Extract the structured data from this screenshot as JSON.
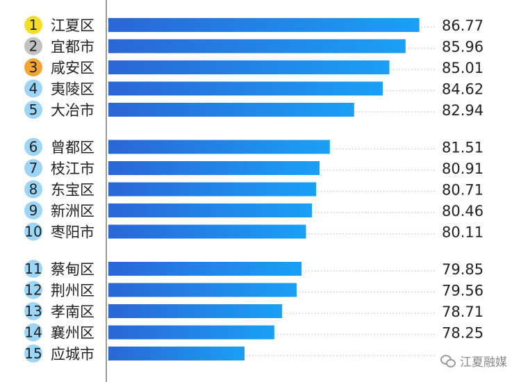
{
  "chart_data": {
    "type": "bar",
    "orientation": "horizontal",
    "ranks": [
      "1",
      "2",
      "3",
      "4",
      "5",
      "6",
      "7",
      "8",
      "9",
      "10",
      "11",
      "12",
      "13",
      "14",
      "15"
    ],
    "categories": [
      "江夏区",
      "宜都市",
      "咸安区",
      "夷陵区",
      "大冶市",
      "曾都区",
      "枝江市",
      "东宝区",
      "新洲区",
      "枣阳市",
      "蔡甸区",
      "荆州区",
      "孝南区",
      "襄州区",
      "应城市"
    ],
    "values": [
      86.77,
      85.96,
      85.01,
      84.62,
      82.94,
      81.51,
      80.91,
      80.71,
      80.46,
      80.11,
      79.85,
      79.56,
      78.71,
      78.25,
      76.5
    ],
    "value_labels": [
      "86.77",
      "85.96",
      "85.01",
      "84.62",
      "82.94",
      "81.51",
      "80.91",
      "80.71",
      "80.46",
      "80.11",
      "79.85",
      "79.56",
      "78.71",
      "78.25",
      ""
    ],
    "xlim": [
      68.5,
      87.6
    ],
    "groups": [
      [
        0,
        4
      ],
      [
        5,
        9
      ],
      [
        10,
        14
      ]
    ],
    "grid": false,
    "colors": {
      "bar_start": "#2a66d6",
      "bar_end": "#1aa0f5",
      "rank_gold": "#f3dc2a",
      "rank_silver": "#c2c2c2",
      "rank_bronze": "#f0a534",
      "rank_default": "#9cd5f5",
      "text": "#222222",
      "dots": "#bfc3c8",
      "axis": "#7a7a7a"
    }
  },
  "watermark": "江夏融媒"
}
